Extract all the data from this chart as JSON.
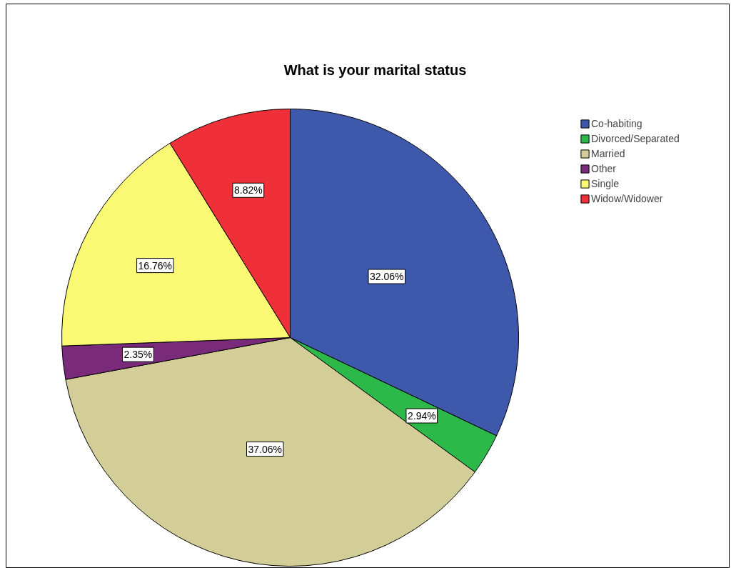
{
  "chart_data": {
    "type": "pie",
    "title": "What is your marital status",
    "categories": [
      "Co-habiting",
      "Divorced/Separated",
      "Married",
      "Other",
      "Single",
      "Widow/Widower"
    ],
    "values": [
      32.06,
      2.94,
      37.06,
      2.35,
      16.76,
      8.82
    ],
    "colors": [
      "#3e58ab",
      "#2db84a",
      "#d3ce97",
      "#7a2a7b",
      "#fbf873",
      "#ef3039"
    ],
    "value_labels": [
      "32.06%",
      "2.94%",
      "37.06%",
      "2.35%",
      "16.76%",
      "8.82%"
    ],
    "legend": "top right"
  }
}
